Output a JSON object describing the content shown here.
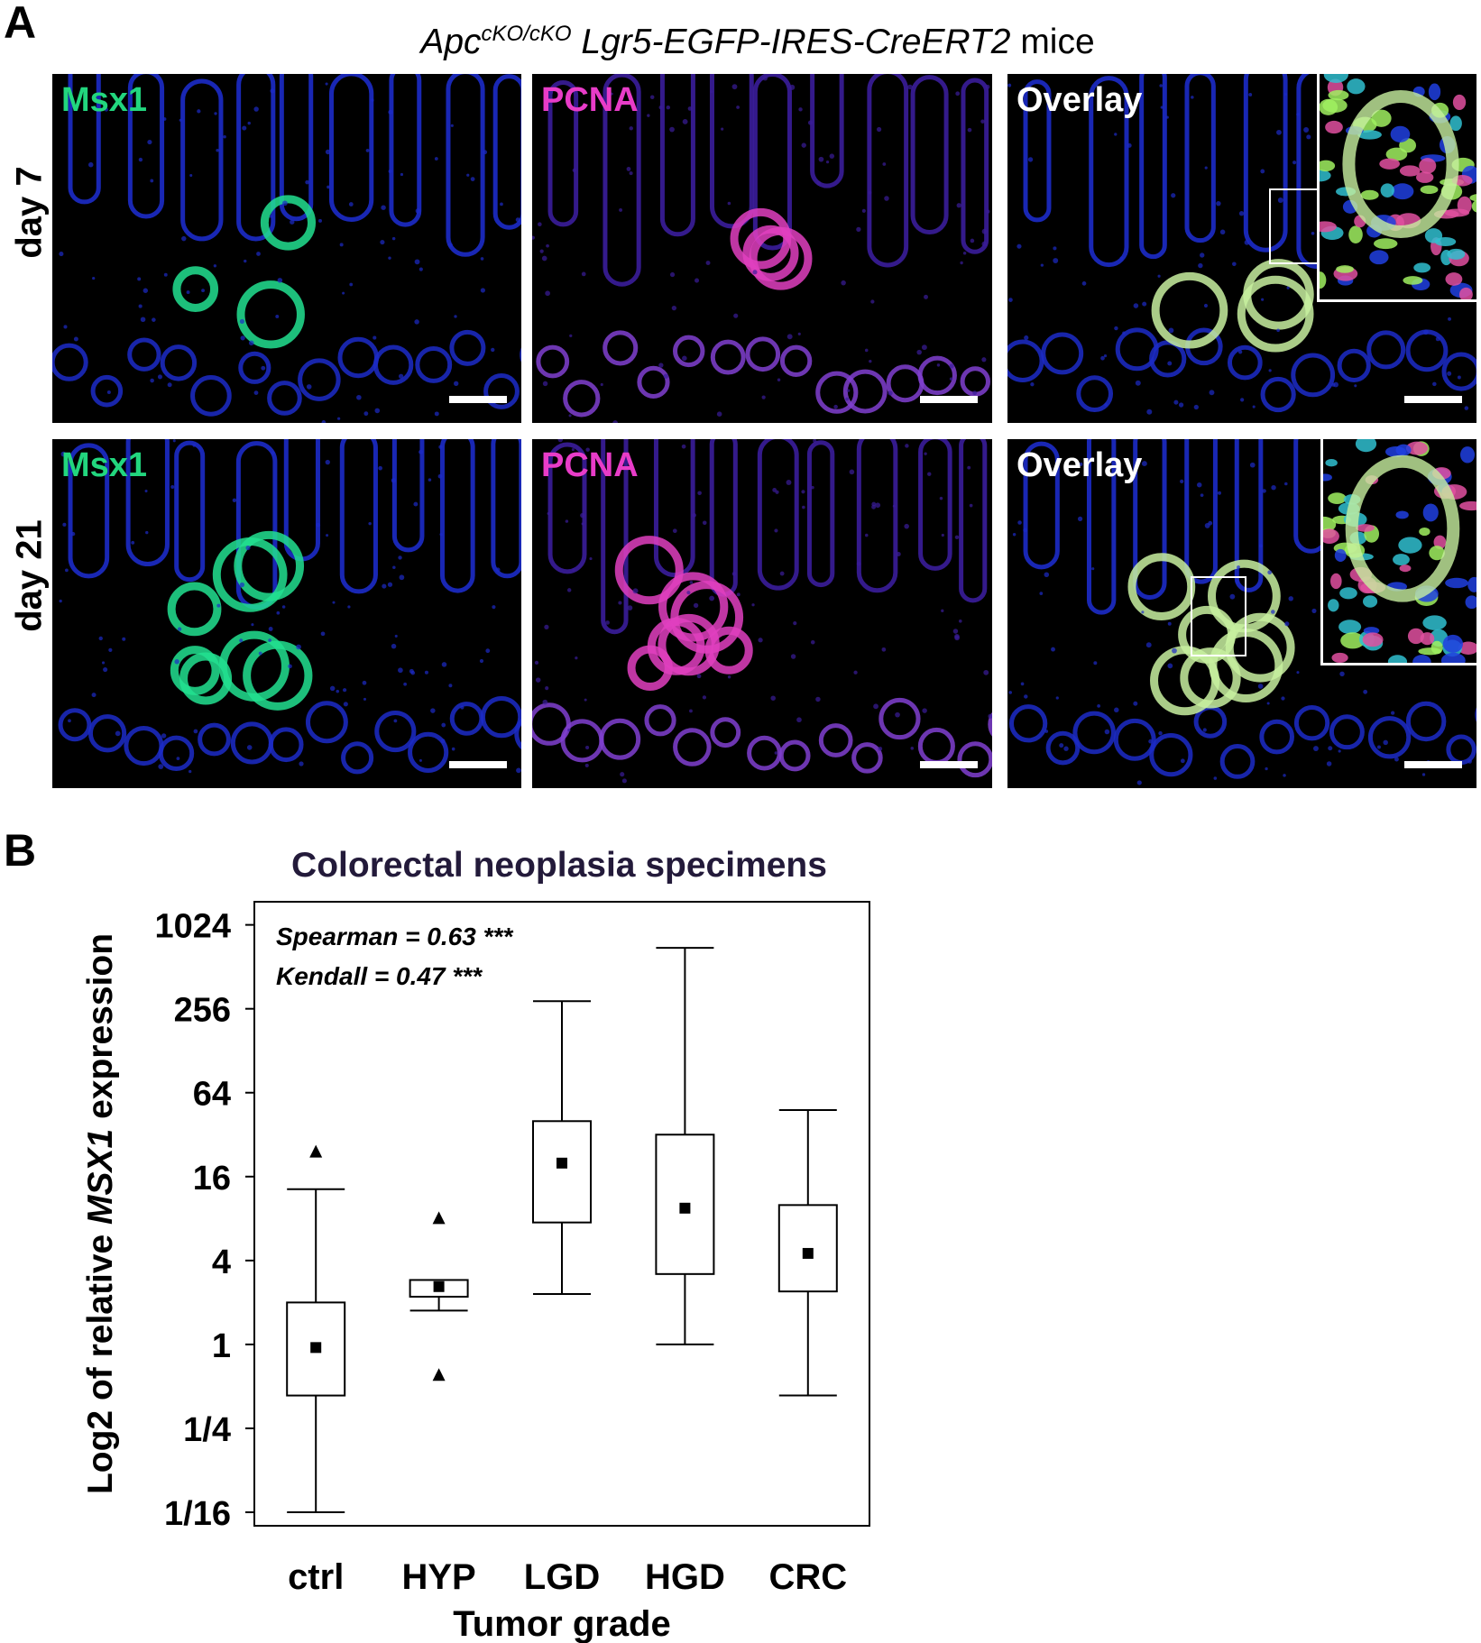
{
  "panel_a": {
    "letter": "A",
    "title_gene": "Apc",
    "title_sup": "cKO/cKO",
    "title_allele": "Lgr5-EGFP-IRES-CreERT2",
    "title_suffix": "mice",
    "rows": [
      {
        "label": "day 7",
        "channels": [
          {
            "label": "Msx1",
            "color": "#22d67e"
          },
          {
            "label": "PCNA",
            "color": "#e83cc8"
          },
          {
            "label": "Overlay",
            "color": "#ffffff"
          }
        ]
      },
      {
        "label": "day 21",
        "channels": [
          {
            "label": "Msx1",
            "color": "#22d67e"
          },
          {
            "label": "PCNA",
            "color": "#e83cc8"
          },
          {
            "label": "Overlay",
            "color": "#ffffff"
          }
        ]
      }
    ]
  },
  "panel_b": {
    "letter": "B",
    "chart_data": {
      "type": "box",
      "title": "Colorectal neoplasia specimens",
      "xlabel": "Tumor grade",
      "ylabel_pre": "Log2 of relative ",
      "ylabel_gene": "MSX1",
      "ylabel_post": " expression",
      "y_scale": "log2",
      "ylim": [
        0.05,
        1500
      ],
      "yticks": [
        {
          "value": 0.0625,
          "label": "1/16"
        },
        {
          "value": 0.25,
          "label": "1/4"
        },
        {
          "value": 1,
          "label": "1"
        },
        {
          "value": 4,
          "label": "4"
        },
        {
          "value": 16,
          "label": "16"
        },
        {
          "value": 64,
          "label": "64"
        },
        {
          "value": 256,
          "label": "256"
        },
        {
          "value": 1024,
          "label": "1024"
        }
      ],
      "annotations": [
        "Spearman = 0.63 ***",
        "Kendall = 0.47 ***"
      ],
      "categories": [
        "ctrl",
        "HYP",
        "LGD",
        "HGD",
        "CRC"
      ],
      "boxes": [
        {
          "category": "ctrl",
          "whisker_low": 0.0625,
          "q1": 0.43,
          "mean": 0.95,
          "q3": 2.0,
          "whisker_high": 13,
          "outliers": [
            24
          ]
        },
        {
          "category": "HYP",
          "whisker_low": 1.75,
          "q1": 2.2,
          "mean": 2.6,
          "q3": 2.9,
          "whisker_high": 2.9,
          "outliers": [
            8,
            0.6
          ]
        },
        {
          "category": "LGD",
          "whisker_low": 2.3,
          "q1": 7.5,
          "mean": 20,
          "q3": 40,
          "whisker_high": 290,
          "outliers": []
        },
        {
          "category": "HGD",
          "whisker_low": 1.0,
          "q1": 3.2,
          "mean": 9.5,
          "q3": 32,
          "whisker_high": 700,
          "outliers": []
        },
        {
          "category": "CRC",
          "whisker_low": 0.43,
          "q1": 2.4,
          "mean": 4.5,
          "q3": 10,
          "whisker_high": 48,
          "outliers": []
        }
      ]
    }
  }
}
